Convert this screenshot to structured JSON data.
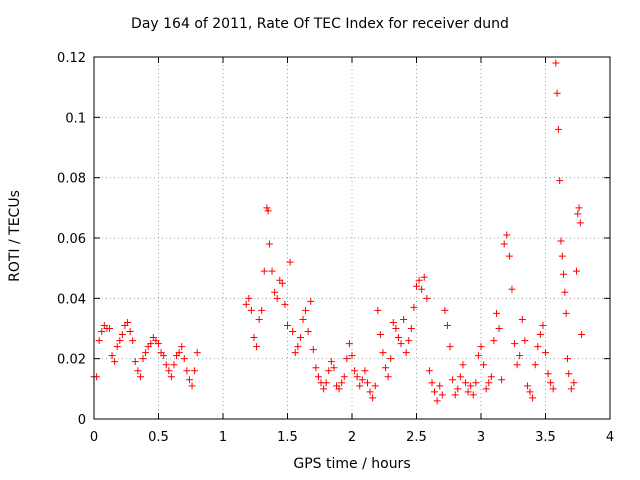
{
  "chart_data": {
    "type": "scatter",
    "title": "Day 164 of 2011, Rate Of TEC Index for receiver dund",
    "xlabel": "GPS time / hours",
    "ylabel": "ROTI / TECUs",
    "xlim": [
      0,
      4
    ],
    "ylim": [
      0,
      0.12
    ],
    "xticks": [
      0,
      0.5,
      1,
      1.5,
      2,
      2.5,
      3,
      3.5,
      4
    ],
    "xtick_labels": [
      "0",
      "0.5",
      "1",
      "1.5",
      "2",
      "2.5",
      "3",
      "3.5",
      "4"
    ],
    "yticks": [
      0,
      0.02,
      0.04,
      0.06,
      0.08,
      0.1,
      0.12
    ],
    "ytick_labels": [
      "0",
      "0.02",
      "0.04",
      "0.06",
      "0.08",
      "0.1",
      "0.12"
    ],
    "grid": true,
    "marker": "+",
    "color": "#ff0000",
    "points": [
      [
        0.0,
        0.014
      ],
      [
        0.02,
        0.014
      ],
      [
        0.04,
        0.026
      ],
      [
        0.06,
        0.029
      ],
      [
        0.08,
        0.031
      ],
      [
        0.1,
        0.03
      ],
      [
        0.12,
        0.03
      ],
      [
        0.14,
        0.021
      ],
      [
        0.16,
        0.019
      ],
      [
        0.18,
        0.024
      ],
      [
        0.2,
        0.026
      ],
      [
        0.22,
        0.028
      ],
      [
        0.24,
        0.031
      ],
      [
        0.26,
        0.032
      ],
      [
        0.28,
        0.029
      ],
      [
        0.3,
        0.026
      ],
      [
        0.32,
        0.019
      ],
      [
        0.34,
        0.016
      ],
      [
        0.36,
        0.014
      ],
      [
        0.38,
        0.02
      ],
      [
        0.4,
        0.022
      ],
      [
        0.42,
        0.024
      ],
      [
        0.44,
        0.025
      ],
      [
        0.46,
        0.027
      ],
      [
        0.48,
        0.026
      ],
      [
        0.5,
        0.025
      ],
      [
        0.52,
        0.022
      ],
      [
        0.54,
        0.021
      ],
      [
        0.56,
        0.018
      ],
      [
        0.58,
        0.016
      ],
      [
        0.6,
        0.014
      ],
      [
        0.62,
        0.018
      ],
      [
        0.64,
        0.021
      ],
      [
        0.66,
        0.022
      ],
      [
        0.68,
        0.024
      ],
      [
        0.7,
        0.02
      ],
      [
        0.72,
        0.016
      ],
      [
        0.74,
        0.013
      ],
      [
        0.76,
        0.011
      ],
      [
        0.78,
        0.016
      ],
      [
        0.8,
        0.022
      ],
      [
        1.18,
        0.038
      ],
      [
        1.2,
        0.04
      ],
      [
        1.22,
        0.036
      ],
      [
        1.24,
        0.027
      ],
      [
        1.26,
        0.024
      ],
      [
        1.28,
        0.033
      ],
      [
        1.3,
        0.036
      ],
      [
        1.32,
        0.049
      ],
      [
        1.34,
        0.07
      ],
      [
        1.35,
        0.069
      ],
      [
        1.36,
        0.058
      ],
      [
        1.38,
        0.049
      ],
      [
        1.4,
        0.042
      ],
      [
        1.42,
        0.04
      ],
      [
        1.44,
        0.046
      ],
      [
        1.46,
        0.045
      ],
      [
        1.48,
        0.038
      ],
      [
        1.5,
        0.031
      ],
      [
        1.52,
        0.052
      ],
      [
        1.54,
        0.029
      ],
      [
        1.56,
        0.022
      ],
      [
        1.58,
        0.024
      ],
      [
        1.6,
        0.027
      ],
      [
        1.62,
        0.033
      ],
      [
        1.64,
        0.036
      ],
      [
        1.66,
        0.029
      ],
      [
        1.68,
        0.039
      ],
      [
        1.7,
        0.023
      ],
      [
        1.72,
        0.017
      ],
      [
        1.74,
        0.014
      ],
      [
        1.76,
        0.012
      ],
      [
        1.78,
        0.01
      ],
      [
        1.8,
        0.012
      ],
      [
        1.82,
        0.016
      ],
      [
        1.84,
        0.019
      ],
      [
        1.86,
        0.017
      ],
      [
        1.88,
        0.011
      ],
      [
        1.9,
        0.01
      ],
      [
        1.92,
        0.012
      ],
      [
        1.94,
        0.014
      ],
      [
        1.96,
        0.02
      ],
      [
        1.98,
        0.025
      ],
      [
        2.0,
        0.021
      ],
      [
        2.02,
        0.016
      ],
      [
        2.04,
        0.014
      ],
      [
        2.06,
        0.011
      ],
      [
        2.08,
        0.013
      ],
      [
        2.1,
        0.016
      ],
      [
        2.12,
        0.012
      ],
      [
        2.14,
        0.009
      ],
      [
        2.16,
        0.007
      ],
      [
        2.18,
        0.011
      ],
      [
        2.2,
        0.036
      ],
      [
        2.22,
        0.028
      ],
      [
        2.24,
        0.022
      ],
      [
        2.26,
        0.017
      ],
      [
        2.28,
        0.014
      ],
      [
        2.3,
        0.02
      ],
      [
        2.32,
        0.032
      ],
      [
        2.34,
        0.03
      ],
      [
        2.36,
        0.027
      ],
      [
        2.38,
        0.025
      ],
      [
        2.4,
        0.033
      ],
      [
        2.42,
        0.022
      ],
      [
        2.44,
        0.026
      ],
      [
        2.46,
        0.03
      ],
      [
        2.48,
        0.037
      ],
      [
        2.5,
        0.044
      ],
      [
        2.52,
        0.046
      ],
      [
        2.54,
        0.043
      ],
      [
        2.56,
        0.047
      ],
      [
        2.58,
        0.04
      ],
      [
        2.6,
        0.016
      ],
      [
        2.62,
        0.012
      ],
      [
        2.64,
        0.009
      ],
      [
        2.66,
        0.006
      ],
      [
        2.68,
        0.011
      ],
      [
        2.7,
        0.008
      ],
      [
        2.72,
        0.036
      ],
      [
        2.74,
        0.031
      ],
      [
        2.76,
        0.024
      ],
      [
        2.78,
        0.013
      ],
      [
        2.8,
        0.008
      ],
      [
        2.82,
        0.01
      ],
      [
        2.84,
        0.014
      ],
      [
        2.86,
        0.018
      ],
      [
        2.88,
        0.012
      ],
      [
        2.9,
        0.009
      ],
      [
        2.92,
        0.011
      ],
      [
        2.94,
        0.008
      ],
      [
        2.96,
        0.012
      ],
      [
        2.98,
        0.021
      ],
      [
        3.0,
        0.024
      ],
      [
        3.02,
        0.018
      ],
      [
        3.04,
        0.01
      ],
      [
        3.06,
        0.012
      ],
      [
        3.08,
        0.014
      ],
      [
        3.1,
        0.026
      ],
      [
        3.12,
        0.035
      ],
      [
        3.14,
        0.03
      ],
      [
        3.16,
        0.013
      ],
      [
        3.18,
        0.058
      ],
      [
        3.2,
        0.061
      ],
      [
        3.22,
        0.054
      ],
      [
        3.24,
        0.043
      ],
      [
        3.26,
        0.025
      ],
      [
        3.28,
        0.018
      ],
      [
        3.3,
        0.021
      ],
      [
        3.32,
        0.033
      ],
      [
        3.34,
        0.026
      ],
      [
        3.36,
        0.011
      ],
      [
        3.38,
        0.009
      ],
      [
        3.4,
        0.007
      ],
      [
        3.42,
        0.018
      ],
      [
        3.44,
        0.024
      ],
      [
        3.46,
        0.028
      ],
      [
        3.48,
        0.031
      ],
      [
        3.5,
        0.022
      ],
      [
        3.52,
        0.015
      ],
      [
        3.54,
        0.012
      ],
      [
        3.56,
        0.01
      ],
      [
        3.58,
        0.118
      ],
      [
        3.59,
        0.108
      ],
      [
        3.6,
        0.096
      ],
      [
        3.61,
        0.079
      ],
      [
        3.62,
        0.059
      ],
      [
        3.63,
        0.054
      ],
      [
        3.64,
        0.048
      ],
      [
        3.65,
        0.042
      ],
      [
        3.66,
        0.035
      ],
      [
        3.67,
        0.02
      ],
      [
        3.68,
        0.015
      ],
      [
        3.7,
        0.01
      ],
      [
        3.72,
        0.012
      ],
      [
        3.74,
        0.049
      ],
      [
        3.75,
        0.068
      ],
      [
        3.76,
        0.07
      ],
      [
        3.77,
        0.065
      ],
      [
        3.78,
        0.028
      ]
    ]
  }
}
